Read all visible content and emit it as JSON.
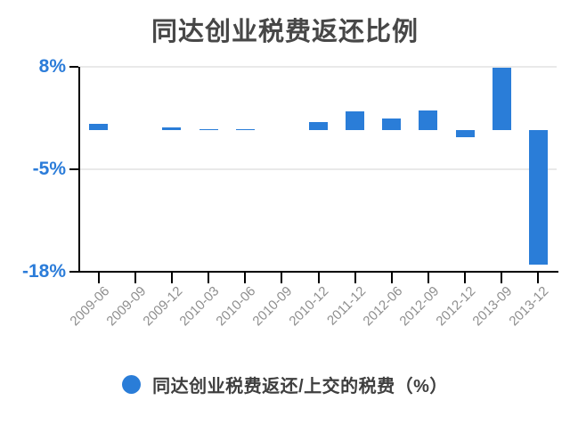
{
  "title": "同达创业税费返还比例",
  "colors": {
    "bar": "#2a7dd8",
    "y_axis_label": "#2b7cd9",
    "title_text": "#474747",
    "x_axis_label": "#8e8e8e",
    "gridline": "#e9e9e9",
    "axis_line": "#000000",
    "background": "#ffffff"
  },
  "legend": {
    "label": "同达创业税费返还/上交的税费（%）",
    "marker_color": "#2a7dd8",
    "marker_shape": "circle"
  },
  "chart_data": {
    "type": "bar",
    "title": "同达创业税费返还比例",
    "series_name": "同达创业税费返还/上交的税费（%）",
    "categories": [
      "2009-06",
      "2009-09",
      "2009-12",
      "2010-03",
      "2010-06",
      "2010-09",
      "2010-12",
      "2011-12",
      "2012-06",
      "2012-09",
      "2012-12",
      "2013-09",
      "2013-12"
    ],
    "values": [
      0.8,
      0,
      0.3,
      0.05,
      0.05,
      0,
      1.0,
      2.4,
      1.4,
      2.5,
      -0.9,
      7.9,
      -17.1
    ],
    "xlabel": "",
    "ylabel": "",
    "ylim": [
      -18,
      8
    ],
    "yticks": [
      {
        "label": "8%",
        "value": 8
      },
      {
        "label": "-5%",
        "value": -5
      },
      {
        "label": "-18%",
        "value": -18
      }
    ],
    "grid": "horizontal lines at yticks, zero line not drawn",
    "legend_position": "bottom-center",
    "bar_color": "#2a7dd8"
  }
}
